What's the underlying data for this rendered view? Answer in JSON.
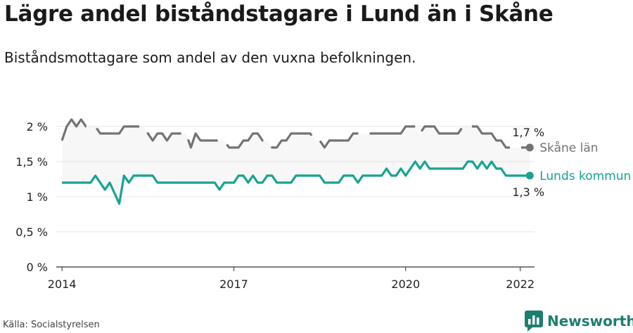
{
  "header": {
    "title": "Lägre andel biståndstagare i Lund än i Skåne",
    "subtitle": "Biståndsmottagare som andel av den vuxna befolkningen."
  },
  "footer": {
    "source": "Källa: Socialstyrelsen",
    "brand": "Newsworthy"
  },
  "colors": {
    "skane": "#737373",
    "lund": "#16a394",
    "band": "#f7f7f7",
    "grid": "#e6e6e6",
    "brand": "#1b7f6e"
  },
  "chart_data": {
    "type": "line",
    "title": "Lägre andel biståndstagare i Lund än i Skåne",
    "subtitle": "Biståndsmottagare som andel av den vuxna befolkningen.",
    "y_ticks": [
      0,
      0.5,
      1,
      1.5,
      2
    ],
    "y_tick_labels": [
      "0 %",
      "0,5 %",
      "1 %",
      "1,5 %",
      "2 %"
    ],
    "ylim": [
      0,
      2.2
    ],
    "x_ticks": [
      2014,
      2017,
      2020,
      2022
    ],
    "x_tick_labels": [
      "2014",
      "2017",
      "2020",
      "2022"
    ],
    "xlim": [
      2013.9,
      2022.25
    ],
    "grid": true,
    "series": [
      {
        "name": "Skåne län",
        "style": "dashed",
        "end_label": "1,7 %",
        "points": [
          [
            2014.0,
            1.8
          ],
          [
            2014.083,
            2.0
          ],
          [
            2014.167,
            2.1
          ],
          [
            2014.25,
            2.0
          ],
          [
            2014.333,
            2.1
          ],
          [
            2014.417,
            2.0
          ],
          [
            2014.5,
            2.0
          ],
          [
            2014.583,
            2.0
          ],
          [
            2014.667,
            1.9
          ],
          [
            2014.75,
            1.9
          ],
          [
            2014.833,
            1.9
          ],
          [
            2014.917,
            1.9
          ],
          [
            2015.0,
            1.9
          ],
          [
            2015.083,
            2.0
          ],
          [
            2015.167,
            2.0
          ],
          [
            2015.25,
            2.0
          ],
          [
            2015.333,
            2.0
          ],
          [
            2015.417,
            2.0
          ],
          [
            2015.5,
            1.9
          ],
          [
            2015.583,
            1.8
          ],
          [
            2015.667,
            1.9
          ],
          [
            2015.75,
            1.9
          ],
          [
            2015.833,
            1.8
          ],
          [
            2015.917,
            1.9
          ],
          [
            2016.0,
            1.9
          ],
          [
            2016.083,
            1.9
          ],
          [
            2016.167,
            1.9
          ],
          [
            2016.25,
            1.7
          ],
          [
            2016.333,
            1.9
          ],
          [
            2016.417,
            1.8
          ],
          [
            2016.5,
            1.8
          ],
          [
            2016.583,
            1.8
          ],
          [
            2016.667,
            1.8
          ],
          [
            2016.75,
            1.8
          ],
          [
            2016.833,
            1.8
          ],
          [
            2016.917,
            1.7
          ],
          [
            2017.0,
            1.7
          ],
          [
            2017.083,
            1.7
          ],
          [
            2017.167,
            1.8
          ],
          [
            2017.25,
            1.8
          ],
          [
            2017.333,
            1.9
          ],
          [
            2017.417,
            1.9
          ],
          [
            2017.5,
            1.8
          ],
          [
            2017.583,
            1.8
          ],
          [
            2017.667,
            1.7
          ],
          [
            2017.75,
            1.7
          ],
          [
            2017.833,
            1.8
          ],
          [
            2017.917,
            1.8
          ],
          [
            2018.0,
            1.9
          ],
          [
            2018.083,
            1.9
          ],
          [
            2018.167,
            1.9
          ],
          [
            2018.25,
            1.9
          ],
          [
            2018.333,
            1.9
          ],
          [
            2018.417,
            1.8
          ],
          [
            2018.5,
            1.8
          ],
          [
            2018.583,
            1.7
          ],
          [
            2018.667,
            1.8
          ],
          [
            2018.75,
            1.8
          ],
          [
            2018.833,
            1.8
          ],
          [
            2018.917,
            1.8
          ],
          [
            2019.0,
            1.8
          ],
          [
            2019.083,
            1.9
          ],
          [
            2019.167,
            1.9
          ],
          [
            2019.25,
            1.9
          ],
          [
            2019.333,
            1.9
          ],
          [
            2019.417,
            1.9
          ],
          [
            2019.5,
            1.9
          ],
          [
            2019.583,
            1.9
          ],
          [
            2019.667,
            1.9
          ],
          [
            2019.75,
            1.9
          ],
          [
            2019.833,
            1.9
          ],
          [
            2019.917,
            1.9
          ],
          [
            2020.0,
            2.0
          ],
          [
            2020.083,
            2.0
          ],
          [
            2020.167,
            2.0
          ],
          [
            2020.25,
            1.9
          ],
          [
            2020.333,
            2.0
          ],
          [
            2020.417,
            2.0
          ],
          [
            2020.5,
            2.0
          ],
          [
            2020.583,
            1.9
          ],
          [
            2020.667,
            1.9
          ],
          [
            2020.75,
            1.9
          ],
          [
            2020.833,
            1.9
          ],
          [
            2020.917,
            1.9
          ],
          [
            2021.0,
            2.0
          ],
          [
            2021.083,
            2.0
          ],
          [
            2021.167,
            2.0
          ],
          [
            2021.25,
            2.0
          ],
          [
            2021.333,
            1.9
          ],
          [
            2021.417,
            1.9
          ],
          [
            2021.5,
            1.9
          ],
          [
            2021.583,
            1.8
          ],
          [
            2021.667,
            1.8
          ],
          [
            2021.75,
            1.7
          ],
          [
            2021.833,
            1.7
          ],
          [
            2021.917,
            1.7
          ],
          [
            2022.0,
            1.7
          ],
          [
            2022.083,
            1.7
          ],
          [
            2022.167,
            1.7
          ]
        ]
      },
      {
        "name": "Lunds kommun",
        "style": "solid",
        "end_label": "1,3 %",
        "points": [
          [
            2014.0,
            1.2
          ],
          [
            2014.083,
            1.2
          ],
          [
            2014.167,
            1.2
          ],
          [
            2014.25,
            1.2
          ],
          [
            2014.333,
            1.2
          ],
          [
            2014.417,
            1.2
          ],
          [
            2014.5,
            1.2
          ],
          [
            2014.583,
            1.3
          ],
          [
            2014.667,
            1.2
          ],
          [
            2014.75,
            1.1
          ],
          [
            2014.833,
            1.2
          ],
          [
            2015.0,
            0.9
          ],
          [
            2015.083,
            1.3
          ],
          [
            2015.167,
            1.2
          ],
          [
            2015.25,
            1.3
          ],
          [
            2015.333,
            1.3
          ],
          [
            2015.417,
            1.3
          ],
          [
            2015.5,
            1.3
          ],
          [
            2015.583,
            1.3
          ],
          [
            2015.667,
            1.2
          ],
          [
            2015.75,
            1.2
          ],
          [
            2015.833,
            1.2
          ],
          [
            2015.917,
            1.2
          ],
          [
            2016.0,
            1.2
          ],
          [
            2016.083,
            1.2
          ],
          [
            2016.167,
            1.2
          ],
          [
            2016.25,
            1.2
          ],
          [
            2016.333,
            1.2
          ],
          [
            2016.417,
            1.2
          ],
          [
            2016.5,
            1.2
          ],
          [
            2016.583,
            1.2
          ],
          [
            2016.667,
            1.2
          ],
          [
            2016.75,
            1.1
          ],
          [
            2016.833,
            1.2
          ],
          [
            2016.917,
            1.2
          ],
          [
            2017.0,
            1.2
          ],
          [
            2017.083,
            1.3
          ],
          [
            2017.167,
            1.3
          ],
          [
            2017.25,
            1.2
          ],
          [
            2017.333,
            1.3
          ],
          [
            2017.417,
            1.2
          ],
          [
            2017.5,
            1.2
          ],
          [
            2017.583,
            1.3
          ],
          [
            2017.667,
            1.3
          ],
          [
            2017.75,
            1.2
          ],
          [
            2017.833,
            1.2
          ],
          [
            2017.917,
            1.2
          ],
          [
            2018.0,
            1.2
          ],
          [
            2018.083,
            1.3
          ],
          [
            2018.167,
            1.3
          ],
          [
            2018.25,
            1.3
          ],
          [
            2018.333,
            1.3
          ],
          [
            2018.417,
            1.3
          ],
          [
            2018.5,
            1.3
          ],
          [
            2018.583,
            1.2
          ],
          [
            2018.667,
            1.2
          ],
          [
            2018.75,
            1.2
          ],
          [
            2018.833,
            1.2
          ],
          [
            2018.917,
            1.3
          ],
          [
            2019.0,
            1.3
          ],
          [
            2019.083,
            1.3
          ],
          [
            2019.167,
            1.2
          ],
          [
            2019.25,
            1.3
          ],
          [
            2019.333,
            1.3
          ],
          [
            2019.417,
            1.3
          ],
          [
            2019.5,
            1.3
          ],
          [
            2019.583,
            1.3
          ],
          [
            2019.667,
            1.4
          ],
          [
            2019.75,
            1.3
          ],
          [
            2019.833,
            1.3
          ],
          [
            2019.917,
            1.4
          ],
          [
            2020.0,
            1.3
          ],
          [
            2020.083,
            1.4
          ],
          [
            2020.167,
            1.5
          ],
          [
            2020.25,
            1.4
          ],
          [
            2020.333,
            1.5
          ],
          [
            2020.417,
            1.4
          ],
          [
            2020.5,
            1.4
          ],
          [
            2020.583,
            1.4
          ],
          [
            2020.667,
            1.4
          ],
          [
            2020.75,
            1.4
          ],
          [
            2020.833,
            1.4
          ],
          [
            2020.917,
            1.4
          ],
          [
            2021.0,
            1.4
          ],
          [
            2021.083,
            1.5
          ],
          [
            2021.167,
            1.5
          ],
          [
            2021.25,
            1.4
          ],
          [
            2021.333,
            1.5
          ],
          [
            2021.417,
            1.4
          ],
          [
            2021.5,
            1.5
          ],
          [
            2021.583,
            1.4
          ],
          [
            2021.667,
            1.4
          ],
          [
            2021.75,
            1.3
          ],
          [
            2021.833,
            1.3
          ],
          [
            2021.917,
            1.3
          ],
          [
            2022.0,
            1.3
          ],
          [
            2022.083,
            1.3
          ],
          [
            2022.167,
            1.3
          ]
        ]
      }
    ]
  }
}
